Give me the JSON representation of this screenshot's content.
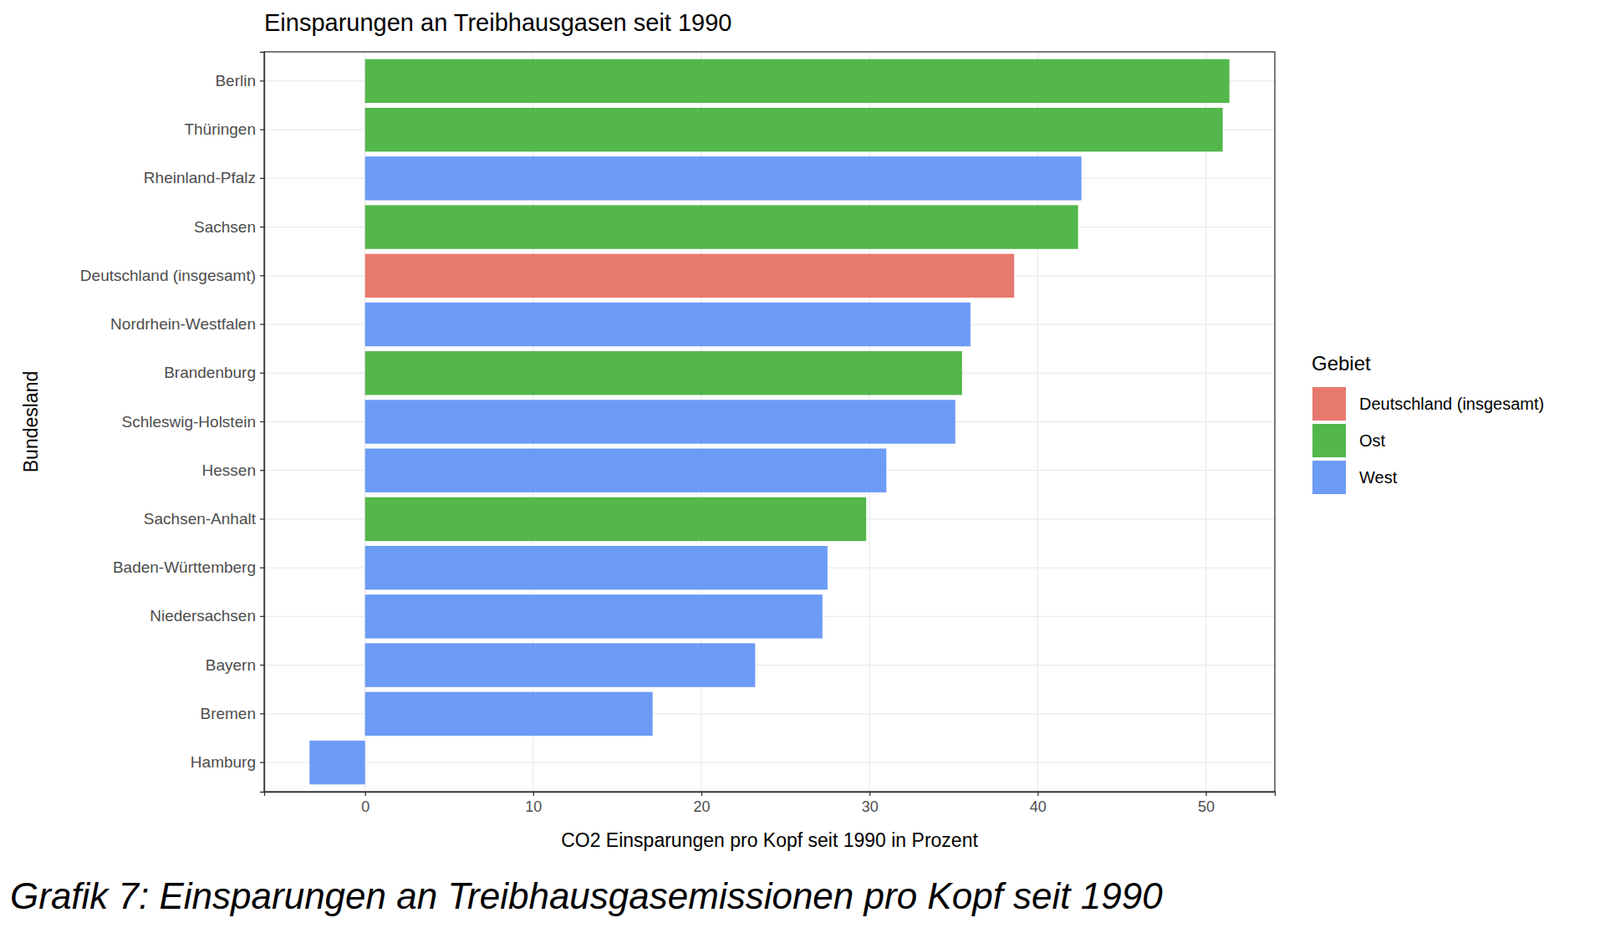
{
  "chart_data": {
    "type": "bar",
    "orientation": "horizontal",
    "title": "Einsparungen an Treibhausgasen seit 1990",
    "x_label": "CO2 Einsparungen pro Kopf seit 1990 in Prozent",
    "y_label": "Bundesland",
    "caption": "Grafik 7: Einsparungen an Treibhausgasemissionen pro Kopf seit 1990",
    "legend_title": "Gebiet",
    "legend": "right",
    "grid": true,
    "categories": [
      "Berlin",
      "Thüringen",
      "Rheinland-Pfalz",
      "Sachsen",
      "Deutschland (insgesamt)",
      "Nordrhein-Westfalen",
      "Brandenburg",
      "Schleswig-Holstein",
      "Hessen",
      "Sachsen-Anhalt",
      "Baden-Württemberg",
      "Niedersachsen",
      "Bayern",
      "Bremen",
      "Hamburg"
    ],
    "series": [
      {
        "name": "Deutschland (insgesamt)",
        "color": "#E8796F",
        "values": [
          null,
          null,
          null,
          null,
          38.6,
          null,
          null,
          null,
          null,
          null,
          null,
          null,
          null,
          null,
          null
        ]
      },
      {
        "name": "Ost",
        "color": "#53B74C",
        "values": [
          51.4,
          51.0,
          null,
          42.4,
          null,
          null,
          35.5,
          null,
          null,
          29.8,
          null,
          null,
          null,
          null,
          null
        ]
      },
      {
        "name": "West",
        "color": "#6C9BF6",
        "values": [
          null,
          null,
          42.6,
          null,
          null,
          36.0,
          null,
          35.1,
          31.0,
          null,
          27.5,
          27.2,
          23.2,
          17.1,
          -3.3
        ]
      }
    ],
    "xlim": [
      -6.0,
      54.1
    ],
    "xticks": [
      0,
      10,
      20,
      30,
      40,
      50
    ]
  }
}
